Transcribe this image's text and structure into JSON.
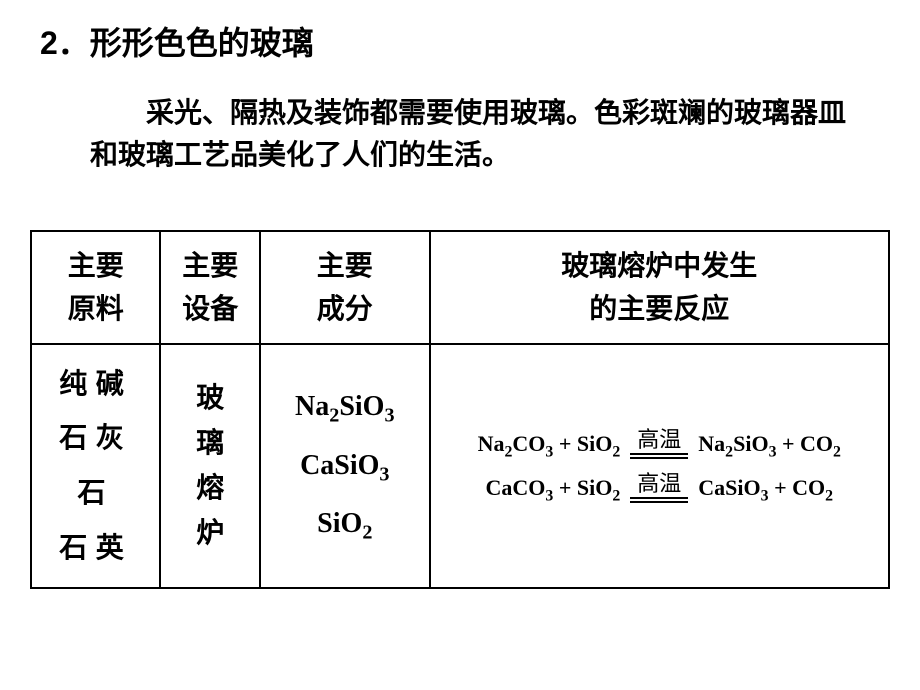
{
  "heading": {
    "text": "2．形形色色的玻璃",
    "fontsize": 32
  },
  "intro": {
    "text": "采光、隔热及装饰都需要使用玻璃。色彩斑斓的玻璃器皿和玻璃工艺品美化了人们的生活。",
    "fontsize": 28
  },
  "table": {
    "header_fontsize": 28,
    "body_fontsize": 28,
    "chem_fontsize": 28,
    "rxn_fontsize": 22,
    "cond_fontsize": 22,
    "border_color": "#000000",
    "columns": [
      {
        "line1": "主要",
        "line2": "原料"
      },
      {
        "line1": "主要",
        "line2": "设备"
      },
      {
        "line1": "主要",
        "line2": "成分"
      },
      {
        "line1": "玻璃熔炉中发生",
        "line2": "的主要反应"
      }
    ],
    "raw_materials": [
      "纯碱",
      "石灰石",
      "石英"
    ],
    "equipment": [
      "玻",
      "璃",
      "熔",
      "炉"
    ],
    "components": [
      {
        "tokens": [
          "Na",
          {
            "sub": "2"
          },
          "SiO",
          {
            "sub": "3"
          }
        ]
      },
      {
        "tokens": [
          "CaSiO",
          {
            "sub": "3"
          }
        ]
      },
      {
        "tokens": [
          "SiO",
          {
            "sub": "2"
          }
        ]
      }
    ],
    "reactions": [
      {
        "lhs": {
          "tokens": [
            "Na",
            {
              "sub": "2"
            },
            "CO",
            {
              "sub": "3"
            },
            " +",
            " SiO",
            {
              "sub": "2"
            }
          ]
        },
        "cond": "高温",
        "rhs": {
          "tokens": [
            "Na",
            {
              "sub": "2"
            },
            "SiO",
            {
              "sub": "3"
            },
            " +",
            " CO",
            {
              "sub": "2"
            }
          ]
        }
      },
      {
        "lhs": {
          "tokens": [
            "CaCO",
            {
              "sub": "3"
            },
            " +",
            " SiO",
            {
              "sub": "2"
            }
          ]
        },
        "cond": "高温",
        "rhs": {
          "tokens": [
            "CaSiO",
            {
              "sub": "3"
            },
            " +",
            " CO",
            {
              "sub": "2"
            }
          ]
        }
      }
    ]
  },
  "colors": {
    "text": "#000000",
    "background": "#ffffff"
  }
}
